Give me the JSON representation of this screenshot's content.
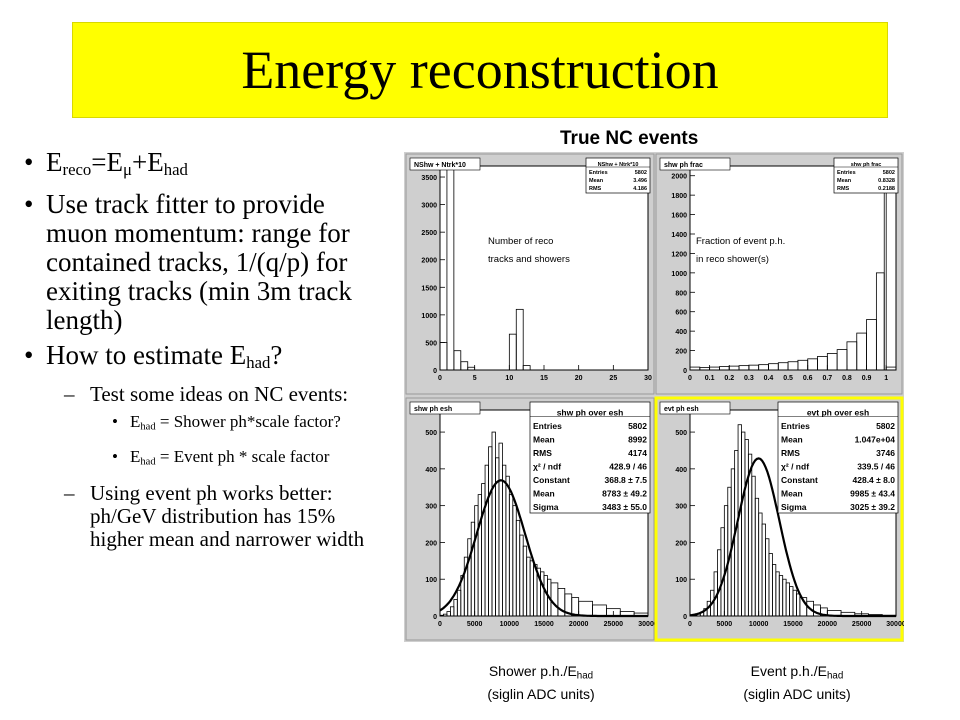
{
  "slide": {
    "title": "Energy reconstruction"
  },
  "bullets": {
    "b1": {
      "main": "E",
      "sub1": "reco",
      "mid": "=E",
      "sub2": "μ",
      "plus": "+E",
      "sub3": "had"
    },
    "b2": "Use track fitter to provide muon momentum:  range for contained tracks, 1/(q/p) for exiting tracks (min 3m track length)",
    "b3": {
      "pre": "How to estimate E",
      "sub": "had",
      "post": "?"
    },
    "s1": "Test some ideas on NC events:",
    "ss1": {
      "pre": "E",
      "sub": "had",
      "post": " = Shower ph*scale factor?"
    },
    "ss2": {
      "pre": "E",
      "sub": "had",
      "post": " = Event ph * scale factor"
    },
    "s2": "Using event ph works better:  ph/GeV distribution has 15% higher mean and narrower width"
  },
  "figure_header": "True NC events",
  "captions": {
    "left": {
      "l1": "Shower p.h./E",
      "sub": "had",
      "l2": "(siglin ADC units)"
    },
    "right": {
      "l1": "Event p.h./E",
      "sub": "had",
      "l2": "(siglin ADC units)"
    }
  },
  "colors": {
    "title_bg": "#ffff00",
    "panel_bg": "#cfcfcf",
    "plot_bg": "#ffffff",
    "fit": "#000000",
    "highlight_border": "#ffff00"
  },
  "chart_data": [
    {
      "type": "bar",
      "title": "NShw + Ntrk*10",
      "annotation": "Number of reco tracks and showers",
      "stats": [
        [
          "NShw + Ntrk*10",
          ""
        ],
        [
          "Entries",
          "5802"
        ],
        [
          "Mean",
          "3.496"
        ],
        [
          "RMS",
          "4.186"
        ]
      ],
      "xlim": [
        0,
        30
      ],
      "ylim": [
        0,
        3700
      ],
      "xticks": [
        0,
        5,
        10,
        15,
        20,
        25,
        30
      ],
      "yticks": [
        0,
        500,
        1000,
        1500,
        2000,
        2500,
        3000,
        3500
      ],
      "bin_edges": [
        0,
        1,
        2,
        3,
        4,
        5,
        10,
        11,
        12,
        13,
        30
      ],
      "values": [
        500,
        3650,
        350,
        150,
        50,
        0,
        650,
        1100,
        80,
        0
      ]
    },
    {
      "type": "bar",
      "title": "shw ph frac",
      "annotation": "Fraction of event p.h. in reco shower(s)",
      "stats": [
        [
          "shw ph frac",
          ""
        ],
        [
          "Entries",
          "5802"
        ],
        [
          "Mean",
          "0.8328"
        ],
        [
          "RMS",
          "0.2188"
        ]
      ],
      "xlim": [
        0,
        1.05
      ],
      "ylim": [
        0,
        2100
      ],
      "xticks": [
        0,
        0.1,
        0.2,
        0.3,
        0.4,
        0.5,
        0.6,
        0.7,
        0.8,
        0.9,
        1
      ],
      "yticks": [
        0,
        200,
        400,
        600,
        800,
        1000,
        1200,
        1400,
        1600,
        1800,
        2000
      ],
      "bin_edges": [
        0,
        0.05,
        0.1,
        0.15,
        0.2,
        0.25,
        0.3,
        0.35,
        0.4,
        0.45,
        0.5,
        0.55,
        0.6,
        0.65,
        0.7,
        0.75,
        0.8,
        0.85,
        0.9,
        0.95,
        0.99,
        1.0,
        1.05
      ],
      "values": [
        30,
        25,
        30,
        35,
        40,
        45,
        50,
        55,
        65,
        75,
        85,
        100,
        115,
        140,
        170,
        210,
        290,
        380,
        520,
        1000,
        1950,
        30
      ]
    },
    {
      "type": "bar",
      "title": "shw ph esh",
      "stats": [
        [
          "shw ph over esh",
          ""
        ],
        [
          "Entries",
          "5802"
        ],
        [
          "Mean",
          "8992"
        ],
        [
          "RMS",
          "4174"
        ],
        [
          "χ² / ndf",
          "428.9 / 46"
        ],
        [
          "Constant",
          "368.8 ± 7.5"
        ],
        [
          "Mean",
          "8783 ± 49.2"
        ],
        [
          "Sigma",
          "3483 ± 55.0"
        ]
      ],
      "xlim": [
        0,
        30000
      ],
      "ylim": [
        0,
        560
      ],
      "xticks": [
        0,
        5000,
        10000,
        15000,
        20000,
        25000,
        30000
      ],
      "yticks": [
        0,
        100,
        200,
        300,
        400,
        500
      ],
      "bin_edges": [
        0,
        500,
        1000,
        1500,
        2000,
        2500,
        3000,
        3500,
        4000,
        4500,
        5000,
        5500,
        6000,
        6500,
        7000,
        7500,
        8000,
        8500,
        9000,
        9500,
        10000,
        10500,
        11000,
        11500,
        12000,
        12500,
        13000,
        13500,
        14000,
        14500,
        15000,
        15500,
        16000,
        17000,
        18000,
        19000,
        20000,
        22000,
        24000,
        26000,
        28000,
        30000
      ],
      "values": [
        2,
        5,
        12,
        25,
        45,
        70,
        110,
        160,
        210,
        255,
        300,
        330,
        360,
        410,
        460,
        500,
        430,
        470,
        410,
        380,
        330,
        300,
        260,
        220,
        190,
        160,
        150,
        140,
        130,
        120,
        110,
        100,
        90,
        75,
        60,
        50,
        40,
        30,
        20,
        12,
        8
      ],
      "fit": {
        "type": "gaussian",
        "constant": 368.8,
        "mean": 8783,
        "sigma": 3483
      }
    },
    {
      "type": "bar",
      "title": "evt ph esh",
      "stats": [
        [
          "evt ph over esh",
          ""
        ],
        [
          "Entries",
          "5802"
        ],
        [
          "Mean",
          "1.047e+04"
        ],
        [
          "RMS",
          "3746"
        ],
        [
          "χ² / ndf",
          "339.5 / 46"
        ],
        [
          "Constant",
          "428.4 ± 8.0"
        ],
        [
          "Mean",
          "9985 ± 43.4"
        ],
        [
          "Sigma",
          "3025 ± 39.2"
        ]
      ],
      "xlim": [
        0,
        30000
      ],
      "ylim": [
        0,
        560
      ],
      "xticks": [
        0,
        5000,
        10000,
        15000,
        20000,
        25000,
        30000
      ],
      "yticks": [
        0,
        100,
        200,
        300,
        400,
        500
      ],
      "bin_edges": [
        0,
        500,
        1000,
        1500,
        2000,
        2500,
        3000,
        3500,
        4000,
        4500,
        5000,
        5500,
        6000,
        6500,
        7000,
        7500,
        8000,
        8500,
        9000,
        9500,
        10000,
        10500,
        11000,
        11500,
        12000,
        12500,
        13000,
        13500,
        14000,
        14500,
        15000,
        15500,
        16000,
        17000,
        18000,
        19000,
        20000,
        22000,
        24000,
        26000,
        28000,
        30000
      ],
      "values": [
        1,
        2,
        5,
        10,
        20,
        40,
        70,
        120,
        180,
        240,
        300,
        350,
        400,
        450,
        520,
        500,
        480,
        440,
        380,
        320,
        280,
        250,
        210,
        170,
        140,
        120,
        110,
        100,
        90,
        80,
        70,
        60,
        50,
        40,
        30,
        22,
        15,
        10,
        6,
        4,
        2
      ],
      "fit": {
        "type": "gaussian",
        "constant": 428.4,
        "mean": 9985,
        "sigma": 3025
      }
    }
  ]
}
